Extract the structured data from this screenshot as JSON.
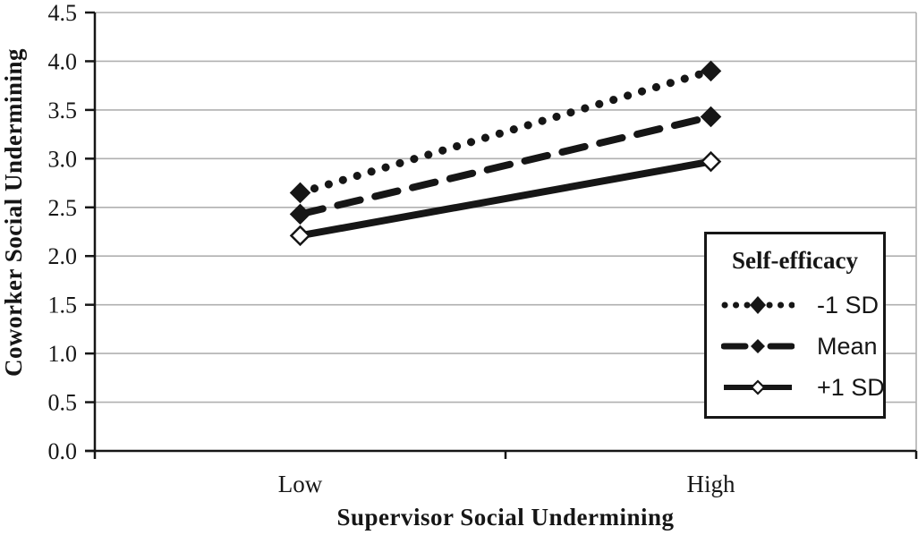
{
  "chart_data": {
    "type": "line",
    "xlabel": "Supervisor Social Undermining",
    "ylabel": "Coworker Social Undermining",
    "categories": [
      "Low",
      "High"
    ],
    "series": [
      {
        "name": "-1 SD",
        "style": "dotted",
        "marker": "filled-diamond",
        "values": [
          2.65,
          3.9
        ]
      },
      {
        "name": "Mean",
        "style": "dashed",
        "marker": "filled-diamond",
        "values": [
          2.43,
          3.43
        ]
      },
      {
        "name": "+1 SD",
        "style": "solid",
        "marker": "open-diamond",
        "values": [
          2.21,
          2.97
        ]
      }
    ],
    "ylim": [
      0,
      4.5
    ],
    "ytick_step": 0.5,
    "yticks": [
      "0.0",
      "0.5",
      "1.0",
      "1.5",
      "2.0",
      "2.5",
      "3.0",
      "3.5",
      "4.0",
      "4.5"
    ],
    "grid": "horizontal",
    "legend": {
      "title": "Self-efficacy",
      "position": "right-middle"
    }
  },
  "colors": {
    "ink": "#161616",
    "grid": "#b0b0b0",
    "background": "#ffffff",
    "marker_open_fill": "#ffffff"
  }
}
